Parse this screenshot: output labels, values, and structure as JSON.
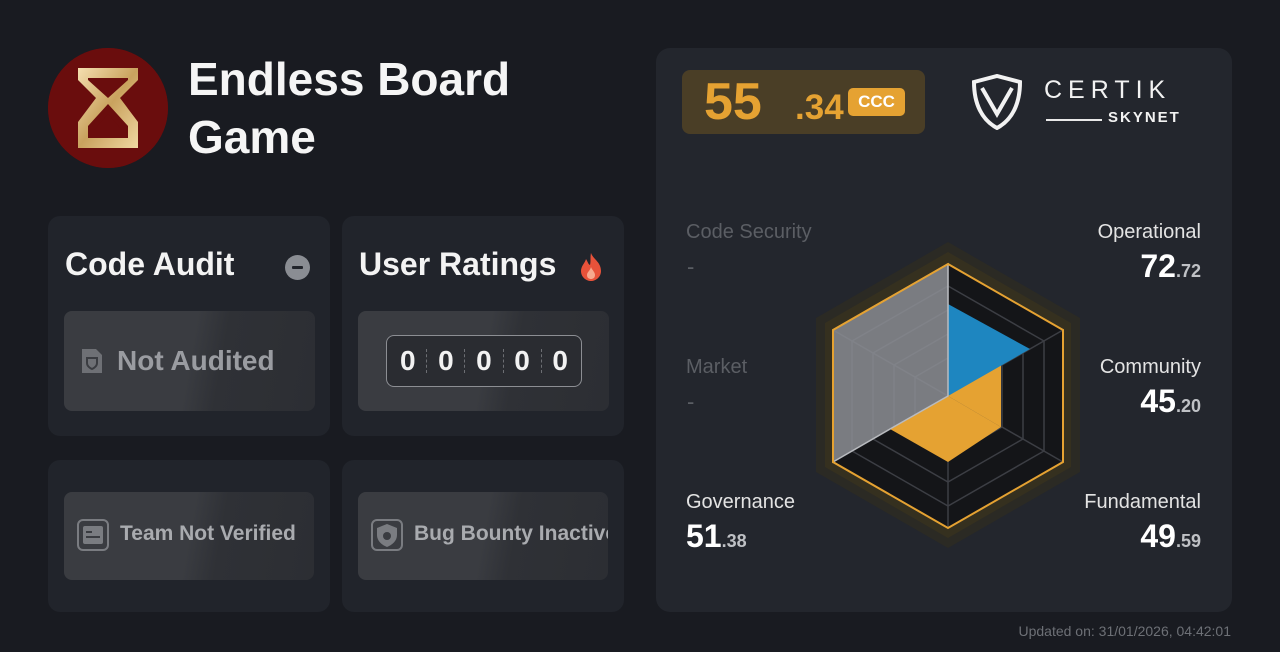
{
  "project": {
    "name": "Endless Board Game"
  },
  "code_audit": {
    "title": "Code Audit",
    "status": "Not Audited"
  },
  "user_ratings": {
    "title": "User Ratings",
    "digits": [
      "0",
      "0",
      "0",
      "0",
      "0"
    ]
  },
  "team": {
    "status": "Team Not Verified"
  },
  "bug_bounty": {
    "status": "Bug Bounty Inactive"
  },
  "score": {
    "integer": "55",
    "decimal": ".34",
    "grade": "CCC"
  },
  "brand": {
    "name": "CERTIK",
    "sub": "SKYNET"
  },
  "metrics": {
    "code_security": {
      "label": "Code Security",
      "value": "-"
    },
    "operational": {
      "label": "Operational",
      "int": "72",
      "dec": ".72"
    },
    "market": {
      "label": "Market",
      "value": "-"
    },
    "community": {
      "label": "Community",
      "int": "45",
      "dec": ".20"
    },
    "governance": {
      "label": "Governance",
      "int": "51",
      "dec": ".38"
    },
    "fundamental": {
      "label": "Fundamental",
      "int": "49",
      "dec": ".59"
    }
  },
  "updated": "Updated on: 31/01/2026, 04:42:01",
  "colors": {
    "accent": "#e5a232",
    "blue": "#1e86c0",
    "background": "#191b21",
    "card": "#21242b"
  }
}
